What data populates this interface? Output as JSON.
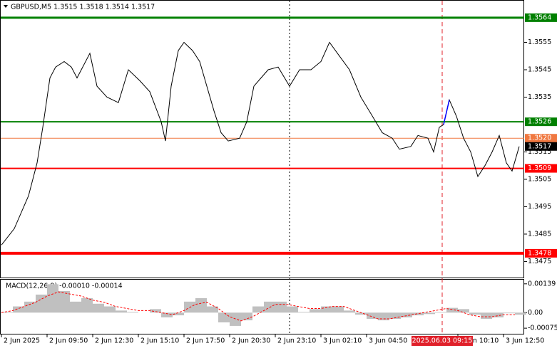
{
  "chart_data": [
    {
      "type": "line",
      "title": "GBPUSD,M5  1.3515 1.3518 1.3514 1.3517",
      "x": [
        0,
        9,
        19,
        25,
        29,
        34,
        38,
        44,
        49,
        53,
        62,
        67,
        74,
        82,
        89,
        97,
        104,
        112,
        115,
        119,
        124,
        128,
        134,
        139,
        144,
        149,
        154,
        159,
        167,
        172,
        177,
        182,
        187,
        194,
        202,
        209,
        217,
        224,
        230,
        237,
        244,
        252,
        259,
        267,
        274,
        279,
        287,
        292,
        299,
        303,
        307,
        310,
        314,
        319,
        324,
        329,
        334,
        339,
        344,
        349,
        354,
        358,
        363
      ],
      "xlim": [
        0,
        365
      ],
      "xticks": [
        {
          "value": 0,
          "label": "2 Jun 2025"
        },
        {
          "value": 32,
          "label": "2 Jun 09:50"
        },
        {
          "value": 64,
          "label": "2 Jun 12:30"
        },
        {
          "value": 96,
          "label": "2 Jun 15:10"
        },
        {
          "value": 128,
          "label": "2 Jun 17:50"
        },
        {
          "value": 160,
          "label": "2 Jun 20:30"
        },
        {
          "value": 192,
          "label": "2 Jun 23:10"
        },
        {
          "value": 224,
          "label": "3 Jun 02:10"
        },
        {
          "value": 256,
          "label": "3 Jun 04:50"
        },
        {
          "value": 320,
          "label": "3 Jun 10:10"
        },
        {
          "value": 352,
          "label": "3 Jun 12:50"
        }
      ],
      "cursor": {
        "value": 309,
        "label": "2025.06.03 09:15",
        "color": "#e0202a"
      },
      "separator": 202,
      "ylim": [
        1.34694,
        1.35702
      ],
      "yticks": [
        1.3555,
        1.3545,
        1.3535,
        1.3515,
        1.3505,
        1.3495,
        1.3485,
        1.3475
      ],
      "series": [
        {
          "color": "#000000",
          "values": [
            1.3481,
            1.3487,
            1.3499,
            1.3511,
            1.3524,
            1.3542,
            1.3546,
            1.3548,
            1.3546,
            1.3542,
            1.3551,
            1.3539,
            1.3535,
            1.3533,
            1.3545,
            1.3541,
            1.3537,
            1.3526,
            1.3519,
            1.3539,
            1.3552,
            1.3555,
            1.3552,
            1.3548,
            1.3539,
            1.353,
            1.3522,
            1.3519,
            1.352,
            1.3526,
            1.3539,
            1.3542,
            1.3545,
            1.3546,
            1.3539,
            1.3545,
            1.3545,
            1.3548,
            1.3555,
            1.355,
            1.3545,
            1.3535,
            1.3529,
            1.3522,
            1.352,
            1.3516,
            1.3517,
            1.3521,
            1.352,
            1.3515,
            1.3524,
            1.3525,
            1.3534,
            1.3528,
            1.352,
            1.3515,
            1.3506,
            1.351,
            1.3515,
            1.3521,
            1.3511,
            1.3508,
            1.3517
          ]
        },
        {
          "color": "#0000ff",
          "values": [
            null,
            null,
            null,
            null,
            null,
            null,
            null,
            null,
            null,
            null,
            null,
            null,
            null,
            null,
            null,
            null,
            null,
            null,
            null,
            null,
            null,
            null,
            null,
            null,
            null,
            null,
            null,
            null,
            null,
            null,
            null,
            null,
            null,
            null,
            null,
            null,
            null,
            null,
            null,
            null,
            null,
            null,
            null,
            null,
            null,
            null,
            null,
            null,
            null,
            null,
            null,
            1.3525,
            1.3534,
            null,
            null,
            null,
            null,
            null,
            null,
            null,
            null,
            null,
            null
          ]
        }
      ],
      "levels": [
        {
          "value": 1.3564,
          "color": "#008000",
          "width": 3
        },
        {
          "value": 1.3526,
          "color": "#008000",
          "width": 2
        },
        {
          "value": 1.352,
          "label": "1.3520",
          "color": "#f07840",
          "width": 1
        },
        {
          "value": 1.3509,
          "color": "#ff0000",
          "width": 2
        },
        {
          "value": 1.3478,
          "color": "#ff0000",
          "width": 4
        }
      ],
      "last": {
        "value": 1.3517,
        "color": "#000000"
      }
    },
    {
      "type": "bar",
      "title": "MACD(12,26,9) -0.00010 -0.00014",
      "x": [
        0,
        8,
        16,
        24,
        32,
        40,
        48,
        56,
        64,
        72,
        80,
        88,
        96,
        104,
        112,
        120,
        128,
        136,
        144,
        152,
        160,
        168,
        176,
        184,
        192,
        200,
        208,
        216,
        224,
        232,
        240,
        248,
        256,
        264,
        272,
        280,
        288,
        296,
        304,
        312,
        320,
        328,
        336,
        344,
        352,
        360
      ],
      "xlim": [
        0,
        365
      ],
      "ylim": [
        -0.00102,
        0.00159
      ],
      "yticks": [
        0.00139,
        {
          "value": 0,
          "label": "0.00"
        },
        -0.00075
      ],
      "series": [
        {
          "type": "bar",
          "color": "#c0c0c0",
          "values": [
            3e-05,
            0.0003,
            0.00053,
            0.00087,
            0.00137,
            0.00104,
            0.00053,
            0.0007,
            0.00043,
            0.0003,
            0.0001,
            3e-05,
            0,
            0.00017,
            -0.00023,
            -0.00013,
            0.00053,
            0.0007,
            0.0003,
            -0.00047,
            -0.00064,
            -0.00037,
            0.0003,
            0.00053,
            0.00053,
            0.0003,
            3e-05,
            0.00017,
            0.0003,
            0.0003,
            0.0001,
            -0.0001,
            -0.0003,
            -0.00037,
            -0.0003,
            -0.00023,
            -0.00013,
            -7e-05,
            3e-05,
            0.00023,
            0.00017,
            -0.0001,
            -0.0003,
            -0.00023,
            -3e-05,
            -0.0001
          ]
        },
        {
          "type": "line",
          "color": "#ff0000",
          "dashed": true,
          "values": [
            0,
            0.0001,
            0.0003,
            0.0005,
            0.0008,
            0.001,
            0.0009,
            0.0008,
            0.0006,
            0.0005,
            0.0003,
            0.0002,
            0.0001,
            0.0001,
            0,
            -0.0001,
            0.0001,
            0.0004,
            0.0005,
            0.0002,
            -0.0002,
            -0.0004,
            -0.0002,
            0.0001,
            0.0004,
            0.0004,
            0.0003,
            0.0002,
            0.0002,
            0.0003,
            0.0003,
            0.0001,
            -0.0001,
            -0.0003,
            -0.0003,
            -0.0002,
            -0.0001,
            0,
            0.0001,
            0.0002,
            0.0001,
            -0.0001,
            -0.0002,
            -0.0002,
            -0.0001,
            -0.0001
          ]
        }
      ]
    }
  ]
}
